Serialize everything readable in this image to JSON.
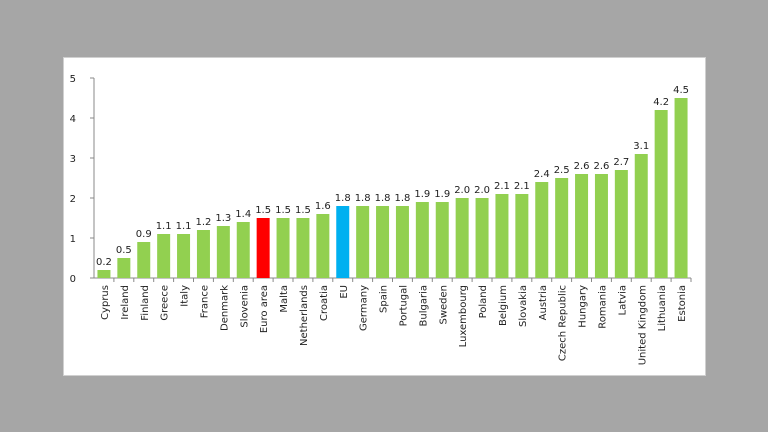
{
  "chart_data": {
    "type": "bar",
    "title": "",
    "xlabel": "",
    "ylabel": "",
    "ylim": [
      0,
      5
    ],
    "yticks": [
      "0",
      "1",
      "2",
      "3",
      "4",
      "5"
    ],
    "grid": false,
    "categories": [
      "Cyprus",
      "Ireland",
      "Finland",
      "Greece",
      "Italy",
      "France",
      "Denmark",
      "Slovenia",
      "Euro area",
      "Malta",
      "Netherlands",
      "Croatia",
      "EU",
      "Germany",
      "Spain",
      "Portugal",
      "Bulgaria",
      "Sweden",
      "Luxembourg",
      "Poland",
      "Belgium",
      "Slovakia",
      "Austria",
      "Czech Republic",
      "Hungary",
      "Romania",
      "Latvia",
      "United Kingdom",
      "Lithuania",
      "Estonia"
    ],
    "values": [
      0.2,
      0.5,
      0.9,
      1.1,
      1.1,
      1.2,
      1.3,
      1.4,
      1.5,
      1.5,
      1.5,
      1.6,
      1.8,
      1.8,
      1.8,
      1.8,
      1.9,
      1.9,
      2.0,
      2.0,
      2.1,
      2.1,
      2.4,
      2.5,
      2.6,
      2.6,
      2.7,
      3.1,
      4.2,
      4.5
    ],
    "data_labels": [
      "0.2",
      "0.5",
      "0.9",
      "1.1",
      "1.1",
      "1.2",
      "1.3",
      "1.4",
      "1.5",
      "1.5",
      "1.5",
      "1.6",
      "1.8",
      "1.8",
      "1.8",
      "1.8",
      "1.9",
      "1.9",
      "2.0",
      "2.0",
      "2.1",
      "2.1",
      "2.4",
      "2.5",
      "2.6",
      "2.6",
      "2.7",
      "3.1",
      "4.2",
      "4.5"
    ],
    "colors": {
      "default": "#92d050",
      "Euro area": "#ff0000",
      "EU": "#00b0f0"
    }
  }
}
